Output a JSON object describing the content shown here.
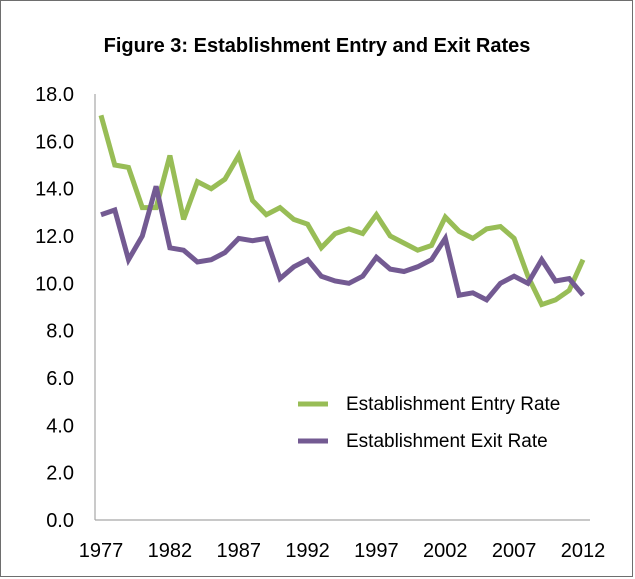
{
  "chart_data": {
    "type": "line",
    "title": "Figure 3: Establishment Entry and Exit Rates",
    "xlabel": "",
    "ylabel": "",
    "ylim": [
      0,
      18
    ],
    "xlim": [
      1977,
      2012
    ],
    "y_ticks": [
      "0.0",
      "2.0",
      "4.0",
      "6.0",
      "8.0",
      "10.0",
      "12.0",
      "14.0",
      "16.0",
      "18.0"
    ],
    "x_ticks": [
      "1977",
      "1982",
      "1987",
      "1992",
      "1997",
      "2002",
      "2007",
      "2012"
    ],
    "grid": false,
    "legend_position": "bottom-right",
    "x": [
      1977,
      1978,
      1979,
      1980,
      1981,
      1982,
      1983,
      1984,
      1985,
      1986,
      1987,
      1988,
      1989,
      1990,
      1991,
      1992,
      1993,
      1994,
      1995,
      1996,
      1997,
      1998,
      1999,
      2000,
      2001,
      2002,
      2003,
      2004,
      2005,
      2006,
      2007,
      2008,
      2009,
      2010,
      2011,
      2012
    ],
    "series": [
      {
        "name": "Establishment Entry Rate",
        "color": "#98bd56",
        "values": [
          17.1,
          15.0,
          14.9,
          13.2,
          13.2,
          15.4,
          12.7,
          14.3,
          14.0,
          14.4,
          15.4,
          13.5,
          12.9,
          13.2,
          12.7,
          12.5,
          11.5,
          12.1,
          12.3,
          12.1,
          12.9,
          12.0,
          11.7,
          11.4,
          11.6,
          12.8,
          12.2,
          11.9,
          12.3,
          12.4,
          11.9,
          10.3,
          9.1,
          9.3,
          9.7,
          11.0
        ]
      },
      {
        "name": "Establishment Exit Rate",
        "color": "#735a92",
        "values": [
          12.9,
          13.1,
          11.0,
          12.0,
          14.1,
          11.5,
          11.4,
          10.9,
          11.0,
          11.3,
          11.9,
          11.8,
          11.9,
          10.2,
          10.7,
          11.0,
          10.3,
          10.1,
          10.0,
          10.3,
          11.1,
          10.6,
          10.5,
          10.7,
          11.0,
          11.9,
          9.5,
          9.6,
          9.3,
          10.0,
          10.3,
          10.0,
          11.0,
          10.1,
          10.2,
          9.5
        ]
      }
    ]
  }
}
